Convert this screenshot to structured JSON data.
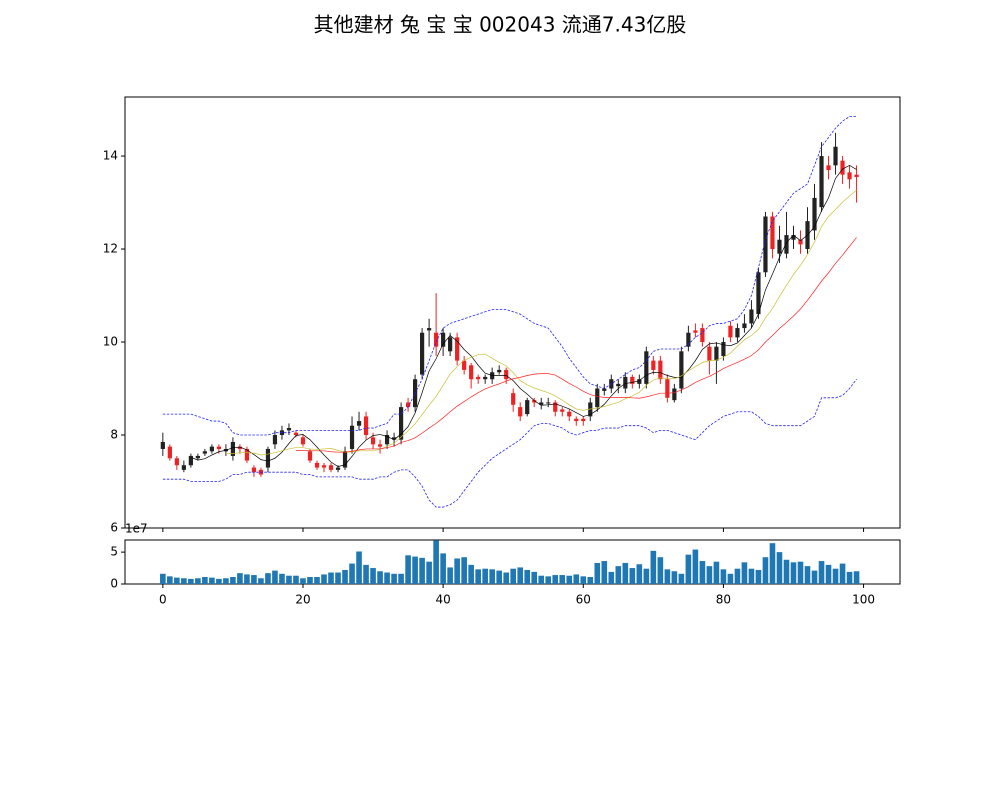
{
  "chart_data": [
    {
      "type": "candlestick",
      "title": "其他建材 兔 宝 宝 002043 流通7.43亿股",
      "x": [
        0,
        1,
        2,
        3,
        4,
        5,
        6,
        7,
        8,
        9,
        10,
        11,
        12,
        13,
        14,
        15,
        16,
        17,
        18,
        19,
        20,
        21,
        22,
        23,
        24,
        25,
        26,
        27,
        28,
        29,
        30,
        31,
        32,
        33,
        34,
        35,
        36,
        37,
        38,
        39,
        40,
        41,
        42,
        43,
        44,
        45,
        46,
        47,
        48,
        49,
        50,
        51,
        52,
        53,
        54,
        55,
        56,
        57,
        58,
        59,
        60,
        61,
        62,
        63,
        64,
        65,
        66,
        67,
        68,
        69,
        70,
        71,
        72,
        73,
        74,
        75,
        76,
        77,
        78,
        79,
        80,
        81,
        82,
        83,
        84,
        85,
        86,
        87,
        88,
        89,
        90,
        91,
        92,
        93,
        94,
        95,
        96,
        97,
        98,
        99
      ],
      "open": [
        7.7,
        7.75,
        7.5,
        7.25,
        7.35,
        7.5,
        7.6,
        7.65,
        7.75,
        7.65,
        7.55,
        7.75,
        7.7,
        7.3,
        7.25,
        7.3,
        7.8,
        8.0,
        8.1,
        8.05,
        7.95,
        7.65,
        7.4,
        7.35,
        7.35,
        7.25,
        7.3,
        7.7,
        8.2,
        8.4,
        7.95,
        7.8,
        7.8,
        7.9,
        7.9,
        8.7,
        8.6,
        9.3,
        10.25,
        10.2,
        9.9,
        9.8,
        10.1,
        9.6,
        9.5,
        9.25,
        9.2,
        9.2,
        9.35,
        9.4,
        8.9,
        8.6,
        8.45,
        8.75,
        8.65,
        8.7,
        8.7,
        8.55,
        8.5,
        8.35,
        8.35,
        8.4,
        8.6,
        8.95,
        9.0,
        9.05,
        9.0,
        9.25,
        9.1,
        9.1,
        9.6,
        9.6,
        9.2,
        8.75,
        9.0,
        9.9,
        10.25,
        10.3,
        9.9,
        9.6,
        9.7,
        10.35,
        10.1,
        10.3,
        10.4,
        10.6,
        11.5,
        12.7,
        11.9,
        11.9,
        12.2,
        12.2,
        12.0,
        12.4,
        12.9,
        13.8,
        13.8,
        13.9,
        13.65,
        13.6
      ],
      "high": [
        8.05,
        7.8,
        7.55,
        7.45,
        7.6,
        7.6,
        7.7,
        7.8,
        7.8,
        7.8,
        7.95,
        7.8,
        7.75,
        7.35,
        7.3,
        7.75,
        8.1,
        8.2,
        8.25,
        8.1,
        8.0,
        7.7,
        7.45,
        7.4,
        7.4,
        7.35,
        7.75,
        8.4,
        8.5,
        8.5,
        8.05,
        7.9,
        8.1,
        8.05,
        8.7,
        8.8,
        9.3,
        10.3,
        10.5,
        11.05,
        10.3,
        10.2,
        10.2,
        9.7,
        9.55,
        9.3,
        9.3,
        9.45,
        9.5,
        9.45,
        9.0,
        8.7,
        8.8,
        8.8,
        8.8,
        8.8,
        8.75,
        8.6,
        8.55,
        8.4,
        8.4,
        8.8,
        9.1,
        9.1,
        9.3,
        9.2,
        9.35,
        9.3,
        9.3,
        9.9,
        9.7,
        9.7,
        9.3,
        9.1,
        9.9,
        10.35,
        10.4,
        10.4,
        10.0,
        10.0,
        10.1,
        10.45,
        10.4,
        10.6,
        10.9,
        11.6,
        12.8,
        12.8,
        12.5,
        12.8,
        12.5,
        12.4,
        12.9,
        13.4,
        14.3,
        14.0,
        14.5,
        14.0,
        13.8,
        13.8
      ],
      "low": [
        7.55,
        7.45,
        7.25,
        7.2,
        7.3,
        7.45,
        7.55,
        7.6,
        7.6,
        7.55,
        7.45,
        7.6,
        7.4,
        7.1,
        7.1,
        7.2,
        7.7,
        7.9,
        8.0,
        7.95,
        7.75,
        7.4,
        7.25,
        7.2,
        7.2,
        7.2,
        7.25,
        7.6,
        8.1,
        7.9,
        7.7,
        7.6,
        7.7,
        7.75,
        7.8,
        8.5,
        8.5,
        9.2,
        9.9,
        9.7,
        9.7,
        9.7,
        9.5,
        9.3,
        9.0,
        9.1,
        9.1,
        9.1,
        9.3,
        9.1,
        8.5,
        8.3,
        8.4,
        8.6,
        8.55,
        8.6,
        8.4,
        8.4,
        8.3,
        8.2,
        8.2,
        8.3,
        8.5,
        8.85,
        8.9,
        8.9,
        8.9,
        9.0,
        9.0,
        9.0,
        9.3,
        9.1,
        8.7,
        8.7,
        8.9,
        9.8,
        10.1,
        9.9,
        9.3,
        9.1,
        9.6,
        10.0,
        10.0,
        10.2,
        10.3,
        10.5,
        11.4,
        11.8,
        11.7,
        11.8,
        12.0,
        11.9,
        11.9,
        12.2,
        12.8,
        13.5,
        13.6,
        13.4,
        13.3,
        13.0
      ],
      "close": [
        7.85,
        7.5,
        7.35,
        7.35,
        7.55,
        7.55,
        7.65,
        7.75,
        7.7,
        7.7,
        7.85,
        7.7,
        7.45,
        7.2,
        7.15,
        7.7,
        8.0,
        8.1,
        8.15,
        8.0,
        7.8,
        7.45,
        7.3,
        7.3,
        7.25,
        7.3,
        7.65,
        8.2,
        8.3,
        8.0,
        7.8,
        7.75,
        8.0,
        7.95,
        8.6,
        8.6,
        9.2,
        10.2,
        10.3,
        9.9,
        10.2,
        10.1,
        9.6,
        9.4,
        9.2,
        9.2,
        9.25,
        9.35,
        9.4,
        9.2,
        8.65,
        8.4,
        8.75,
        8.7,
        8.7,
        8.7,
        8.5,
        8.5,
        8.4,
        8.3,
        8.3,
        8.7,
        9.0,
        9.0,
        9.2,
        9.1,
        9.25,
        9.1,
        9.2,
        9.8,
        9.4,
        9.2,
        8.8,
        9.0,
        9.8,
        10.2,
        10.2,
        10.0,
        9.6,
        9.9,
        10.0,
        10.1,
        10.3,
        10.4,
        10.7,
        11.5,
        12.7,
        12.0,
        12.2,
        12.3,
        12.3,
        12.1,
        12.6,
        13.1,
        14.0,
        13.7,
        14.2,
        13.6,
        13.5,
        13.55
      ],
      "up_color": "#222222",
      "down_color": "#ee2222",
      "series": [
        {
          "color": "#000000",
          "linestyle": "solid",
          "values": [
            null,
            null,
            null,
            null,
            7.52,
            7.46,
            7.49,
            7.57,
            7.64,
            7.67,
            7.73,
            7.74,
            7.68,
            7.58,
            7.47,
            7.44,
            7.5,
            7.63,
            7.82,
            7.99,
            8.01,
            7.9,
            7.74,
            7.57,
            7.42,
            7.32,
            7.36,
            7.54,
            7.74,
            7.89,
            7.99,
            8.01,
            7.97,
            7.9,
            8.02,
            8.18,
            8.47,
            8.91,
            9.38,
            9.64,
            9.96,
            10.14,
            10.02,
            9.84,
            9.7,
            9.5,
            9.33,
            9.28,
            9.28,
            9.28,
            9.17,
            9.0,
            8.88,
            8.74,
            8.64,
            8.65,
            8.67,
            8.62,
            8.56,
            8.48,
            8.4,
            8.44,
            8.54,
            8.66,
            8.84,
            9.0,
            9.11,
            9.13,
            9.17,
            9.29,
            9.35,
            9.34,
            9.28,
            9.24,
            9.24,
            9.4,
            9.6,
            9.84,
            9.96,
            9.98,
            9.94,
            9.92,
            9.98,
            10.14,
            10.3,
            10.6,
            11.12,
            11.46,
            11.82,
            12.14,
            12.3,
            12.18,
            12.3,
            12.48,
            12.82,
            13.1,
            13.52,
            13.72,
            13.8,
            13.71
          ]
        },
        {
          "color": "#c8c030",
          "linestyle": "solid",
          "values": [
            null,
            null,
            null,
            null,
            null,
            null,
            null,
            null,
            null,
            7.6,
            7.6,
            7.62,
            7.62,
            7.61,
            7.57,
            7.59,
            7.62,
            7.66,
            7.7,
            7.73,
            7.73,
            7.7,
            7.69,
            7.7,
            7.71,
            7.67,
            7.63,
            7.64,
            7.66,
            7.66,
            7.66,
            7.69,
            7.76,
            7.82,
            7.96,
            8.09,
            8.24,
            8.44,
            8.64,
            8.83,
            9.07,
            9.31,
            9.47,
            9.61,
            9.67,
            9.73,
            9.74,
            9.65,
            9.56,
            9.49,
            9.34,
            9.17,
            9.08,
            9.01,
            8.96,
            8.91,
            8.84,
            8.75,
            8.65,
            8.56,
            8.53,
            8.56,
            8.58,
            8.61,
            8.66,
            8.7,
            8.78,
            8.84,
            8.92,
            9.07,
            9.18,
            9.23,
            9.21,
            9.21,
            9.27,
            9.38,
            9.47,
            9.56,
            9.6,
            9.61,
            9.67,
            9.76,
            9.91,
            10.05,
            10.14,
            10.27,
            10.52,
            10.72,
            10.98,
            11.22,
            11.45,
            11.65,
            11.88,
            12.15,
            12.48,
            12.7,
            12.85,
            13.01,
            13.14,
            13.27
          ]
        },
        {
          "color": "#ff2020",
          "linestyle": "solid",
          "values": [
            null,
            null,
            null,
            null,
            null,
            null,
            null,
            null,
            null,
            null,
            null,
            null,
            null,
            null,
            null,
            null,
            null,
            null,
            null,
            7.67,
            7.67,
            7.66,
            7.66,
            7.66,
            7.64,
            7.63,
            7.63,
            7.65,
            7.68,
            7.7,
            7.7,
            7.7,
            7.73,
            7.76,
            7.84,
            7.88,
            7.94,
            8.04,
            8.15,
            8.25,
            8.37,
            8.5,
            8.62,
            8.72,
            8.82,
            8.91,
            8.99,
            9.05,
            9.1,
            9.16,
            9.21,
            9.24,
            9.28,
            9.31,
            9.32,
            9.32,
            9.29,
            9.2,
            9.11,
            9.03,
            8.94,
            8.87,
            8.83,
            8.81,
            8.81,
            8.81,
            8.81,
            8.8,
            8.79,
            8.82,
            8.86,
            8.9,
            8.9,
            8.91,
            8.97,
            9.04,
            9.13,
            9.2,
            9.26,
            9.34,
            9.43,
            9.5,
            9.56,
            9.63,
            9.71,
            9.83,
            10.0,
            10.14,
            10.29,
            10.42,
            10.56,
            10.71,
            10.9,
            11.1,
            11.31,
            11.49,
            11.69,
            11.87,
            12.06,
            12.25
          ]
        },
        {
          "color": "#2020ff",
          "linestyle": "dashed",
          "values": [
            8.45,
            8.45,
            8.45,
            8.45,
            8.45,
            8.4,
            8.35,
            8.3,
            8.3,
            8.25,
            8.05,
            8.0,
            8.0,
            8.0,
            8.0,
            8.0,
            8.05,
            8.05,
            8.05,
            8.1,
            8.1,
            8.1,
            8.1,
            8.1,
            8.1,
            8.1,
            8.1,
            8.1,
            8.1,
            8.15,
            8.15,
            8.2,
            8.25,
            8.45,
            8.45,
            8.6,
            8.9,
            9.2,
            9.6,
            10.0,
            10.3,
            10.4,
            10.45,
            10.5,
            10.55,
            10.6,
            10.65,
            10.7,
            10.7,
            10.7,
            10.65,
            10.6,
            10.5,
            10.4,
            10.35,
            10.3,
            10.1,
            9.9,
            9.65,
            9.45,
            9.25,
            9.1,
            9.05,
            9.0,
            9.1,
            9.2,
            9.3,
            9.4,
            9.45,
            9.6,
            9.8,
            9.85,
            9.85,
            9.85,
            9.85,
            9.95,
            10.1,
            10.2,
            10.35,
            10.4,
            10.4,
            10.45,
            10.5,
            10.7,
            11.0,
            11.6,
            12.2,
            12.6,
            12.8,
            13.0,
            13.2,
            13.3,
            13.4,
            13.8,
            14.2,
            14.4,
            14.6,
            14.75,
            14.85,
            14.85
          ]
        },
        {
          "color": "#2020ff",
          "linestyle": "dashed",
          "values": [
            7.05,
            7.05,
            7.05,
            7.05,
            7.0,
            7.0,
            7.0,
            7.0,
            7.0,
            7.05,
            7.15,
            7.15,
            7.2,
            7.2,
            7.2,
            7.2,
            7.2,
            7.2,
            7.2,
            7.2,
            7.15,
            7.15,
            7.1,
            7.1,
            7.1,
            7.1,
            7.1,
            7.1,
            7.05,
            7.05,
            7.05,
            7.1,
            7.1,
            7.2,
            7.25,
            7.25,
            7.1,
            6.9,
            6.6,
            6.45,
            6.45,
            6.5,
            6.6,
            6.8,
            7.0,
            7.2,
            7.35,
            7.5,
            7.6,
            7.7,
            7.8,
            7.9,
            8.05,
            8.2,
            8.25,
            8.25,
            8.2,
            8.15,
            8.05,
            8.0,
            8.05,
            8.1,
            8.1,
            8.15,
            8.15,
            8.15,
            8.2,
            8.2,
            8.2,
            8.15,
            8.05,
            8.1,
            8.1,
            8.05,
            8.0,
            7.95,
            7.9,
            8.05,
            8.2,
            8.3,
            8.4,
            8.45,
            8.5,
            8.5,
            8.5,
            8.4,
            8.25,
            8.2,
            8.2,
            8.2,
            8.2,
            8.2,
            8.3,
            8.4,
            8.8,
            8.8,
            8.8,
            8.85,
            9.0,
            9.2
          ]
        }
      ],
      "xlim": [
        -5.4,
        105.2
      ],
      "xticks": [
        0,
        20,
        40,
        60,
        80,
        100
      ],
      "ylim": [
        6,
        15.27
      ],
      "yticks": [
        6,
        8,
        10,
        12,
        14
      ]
    },
    {
      "type": "bar",
      "color": "#1f77b4",
      "offset_label": "1e7",
      "values": [
        1.6,
        1.2,
        1.0,
        0.9,
        0.8,
        0.9,
        1.1,
        1.0,
        0.8,
        0.9,
        1.1,
        1.7,
        1.5,
        1.4,
        0.9,
        1.7,
        2.1,
        1.6,
        1.3,
        1.3,
        0.9,
        1.1,
        1.1,
        1.5,
        1.8,
        1.8,
        2.2,
        3.2,
        5.1,
        3.0,
        2.5,
        2.0,
        1.8,
        1.6,
        1.6,
        4.5,
        4.3,
        4.1,
        3.5,
        6.8,
        4.8,
        2.6,
        4.0,
        4.2,
        3.0,
        2.3,
        2.4,
        2.3,
        2.1,
        1.8,
        2.4,
        2.6,
        2.2,
        1.9,
        1.3,
        1.2,
        1.4,
        1.4,
        1.3,
        1.5,
        1.2,
        1.1,
        3.3,
        3.6,
        1.9,
        2.8,
        3.3,
        2.5,
        3.1,
        2.4,
        5.2,
        4.2,
        2.3,
        2.0,
        1.6,
        4.6,
        5.4,
        3.6,
        2.8,
        3.5,
        2.3,
        1.6,
        2.4,
        3.4,
        2.4,
        2.2,
        4.2,
        6.4,
        5.0,
        3.8,
        3.4,
        3.5,
        2.8,
        2.1,
        3.6,
        3.0,
        2.4,
        3.2,
        1.9,
        2.0
      ],
      "xlim": [
        -5.4,
        105.2
      ],
      "xticks": [
        0,
        20,
        40,
        60,
        80,
        100
      ],
      "ylim": [
        0,
        6.9
      ],
      "yticks": [
        0,
        5
      ]
    }
  ]
}
